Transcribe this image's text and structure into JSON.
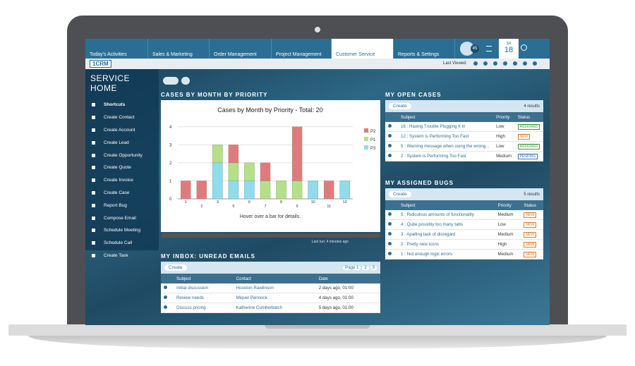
{
  "nav": {
    "tabs": [
      "Today's Activities",
      "Sales & Marketing",
      "Order Management",
      "Project Management",
      "Customer Service",
      "Reports & Settings"
    ],
    "active_tab": 4,
    "badge": "45",
    "day": "SA",
    "date": "18",
    "logo": "1CRM",
    "last_viewed": "Last Viewed"
  },
  "sidebar": {
    "title": "SERVICE HOME",
    "items": [
      "Shortcuts",
      "Create Contact",
      "Create Account",
      "Create Lead",
      "Create Opportunity",
      "Create Quote",
      "Create Invoice",
      "Create Case",
      "Report Bug",
      "Compose Email",
      "Schedule Meeting",
      "Schedule Call",
      "Create Task"
    ]
  },
  "cases_chart": {
    "dashlet_title": "CASES BY MONTH BY PRIORITY",
    "type": "bar",
    "title": "Cases by Month by Priority - Total: 20",
    "categories": [
      "1",
      "2",
      "3",
      "5",
      "6",
      "7",
      "8",
      "9",
      "10",
      "11",
      "12"
    ],
    "series": [
      {
        "name": "P2",
        "color": "#e07b7b",
        "values": [
          1,
          1,
          0,
          1,
          0,
          1,
          0,
          3,
          0,
          1,
          0
        ]
      },
      {
        "name": "P1",
        "color": "#b5e08a",
        "values": [
          0,
          0,
          1,
          1,
          1,
          1,
          1,
          1,
          0,
          0,
          0
        ]
      },
      {
        "name": "P3",
        "color": "#8fdcec",
        "values": [
          0,
          0,
          2,
          1,
          1,
          0,
          0,
          0,
          1,
          0,
          1
        ]
      }
    ],
    "ylim": [
      0,
      4.5
    ],
    "yticks": [
      0,
      1,
      2,
      3,
      4
    ],
    "grid": true,
    "stacked": true,
    "footer": "Hover over a bar for details.",
    "last_run": "Last run: 4 minutes ago"
  },
  "open_cases": {
    "title": "MY OPEN CASES",
    "create": "Create",
    "count": "4 results",
    "columns": [
      "Subject",
      "Priority",
      "Status"
    ],
    "rows": [
      {
        "subject": "16 : Having Trouble Plugging It In",
        "priority": "Low",
        "status": "ASSIGNED",
        "status_color": "#3a9a3a"
      },
      {
        "subject": "12 : System is Performing Too Fast",
        "priority": "High",
        "status": "NEW",
        "status_color": "#e07b2a"
      },
      {
        "subject": "5 : Warning message when using the wrong...",
        "priority": "Low",
        "status": "ASSIGNED",
        "status_color": "#3a9a3a"
      },
      {
        "subject": "2 : System is Performing Too Fast",
        "priority": "Medium",
        "status": "PENDING",
        "status_color": "#3a72b0"
      }
    ]
  },
  "bugs": {
    "title": "MY ASSIGNED BUGS",
    "create": "Create",
    "count": "5 results",
    "columns": [
      "Subject",
      "Priority",
      "Status"
    ],
    "rows": [
      {
        "subject": "5 : Ridiculous amounts of functionality",
        "priority": "Medium",
        "status": "NEW",
        "status_color": "#e07b2a"
      },
      {
        "subject": "4 : Quite possibly too many tabs",
        "priority": "Low",
        "status": "NEW",
        "status_color": "#e07b2a"
      },
      {
        "subject": "3 : Apalling lack of disregard",
        "priority": "Medium",
        "status": "NEW",
        "status_color": "#e07b2a"
      },
      {
        "subject": "2 : Pretty new icons",
        "priority": "High",
        "status": "NEW",
        "status_color": "#e07b2a"
      },
      {
        "subject": "1 : Not enough logic errors",
        "priority": "Medium",
        "status": "NEW",
        "status_color": "#e07b2a"
      }
    ]
  },
  "inbox": {
    "title": "MY INBOX: UNREAD EMAILS",
    "create": "Create",
    "pages": [
      "Page 1",
      "2",
      "3"
    ],
    "columns": [
      "Subject",
      "Contact",
      "Date"
    ],
    "rows": [
      {
        "subject": "Initial discussion",
        "contact": "Houston Rawlinson",
        "date": "2 days ago, 01:00"
      },
      {
        "subject": "Review needs",
        "contact": "Miquel Pennock",
        "date": "4 days ago, 01:00"
      },
      {
        "subject": "Discuss pricing",
        "contact": "Katherine Cumberbatch",
        "date": "5 days ago, 01:00"
      }
    ]
  }
}
